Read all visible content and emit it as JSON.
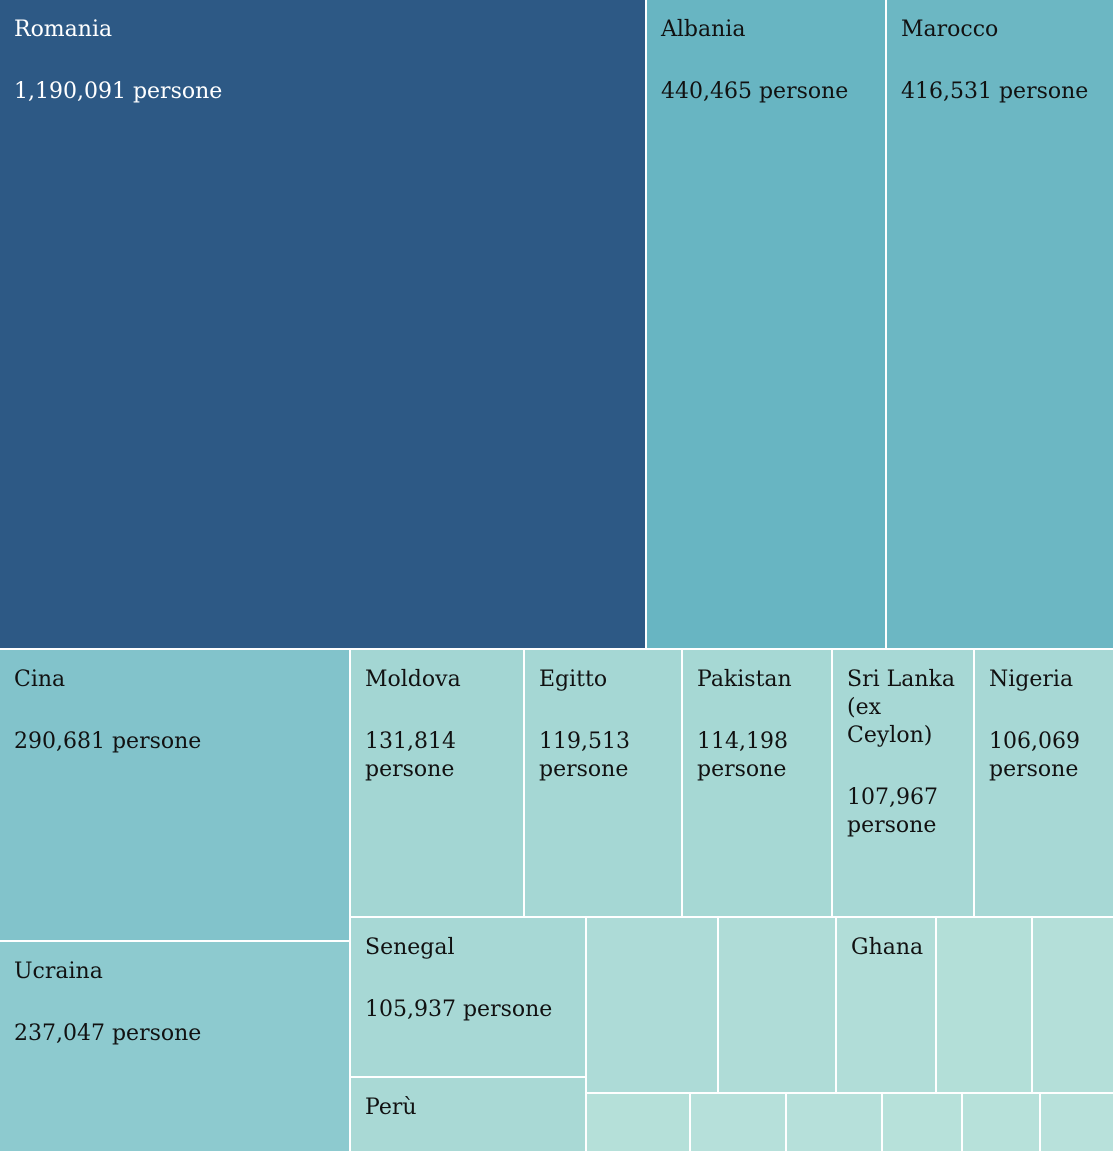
{
  "chart_data": {
    "type": "treemap",
    "value_suffix": "persone",
    "items": [
      {
        "name": "Romania",
        "value": 1190091,
        "value_label": "1,190,091 persone",
        "color": "#2d5985",
        "text_color": "#ffffff"
      },
      {
        "name": "Albania",
        "value": 440465,
        "value_label": "440,465 persone",
        "color": "#68b5c2",
        "text_color": "#111111"
      },
      {
        "name": "Marocco",
        "value": 416531,
        "value_label": "416,531 persone",
        "color": "#6cb7c3",
        "text_color": "#111111"
      },
      {
        "name": "Cina",
        "value": 290681,
        "value_label": "290,681 persone",
        "color": "#82c3cb",
        "text_color": "#111111"
      },
      {
        "name": "Ucraina",
        "value": 237047,
        "value_label": "237,047 persone",
        "color": "#8dcacf",
        "text_color": "#111111"
      },
      {
        "name": "Moldova",
        "value": 131814,
        "value_label": "131,814 persone",
        "color": "#a3d6d3",
        "text_color": "#111111"
      },
      {
        "name": "Egitto",
        "value": 119513,
        "value_label": "119,513 persone",
        "color": "#a5d7d4",
        "text_color": "#111111"
      },
      {
        "name": "Pakistan",
        "value": 114198,
        "value_label": "114,198 persone",
        "color": "#a6d8d4",
        "text_color": "#111111"
      },
      {
        "name": "Sri Lanka (ex Ceylon)",
        "value": 107967,
        "value_label": "107,967 persone",
        "color": "#a7d8d5",
        "text_color": "#111111"
      },
      {
        "name": "Nigeria",
        "value": 106069,
        "value_label": "106,069 persone",
        "color": "#a7d8d5",
        "text_color": "#111111"
      },
      {
        "name": "Senegal",
        "value": 105937,
        "value_label": "105,937 persone",
        "color": "#a7d8d5",
        "text_color": "#111111"
      },
      {
        "name": "Perù",
        "value": 99000,
        "value_label": "",
        "color": "#a9d9d5",
        "text_color": "#111111"
      },
      {
        "name": "",
        "value": 93000,
        "value_label": "",
        "color": "#addbd7",
        "text_color": "#111111"
      },
      {
        "name": "",
        "value": 84000,
        "value_label": "",
        "color": "#afdcd7",
        "text_color": "#111111"
      },
      {
        "name": "Ghana",
        "value": 71000,
        "value_label": "",
        "color": "#b1ddd8",
        "text_color": "#111111"
      },
      {
        "name": "",
        "value": 68000,
        "value_label": "",
        "color": "#b3dfd8",
        "text_color": "#111111"
      },
      {
        "name": "",
        "value": 60000,
        "value_label": "",
        "color": "#b4dfd9",
        "text_color": "#111111"
      },
      {
        "name": "",
        "value": 33000,
        "value_label": "",
        "color": "#b5e0d9",
        "text_color": "#111111"
      },
      {
        "name": "",
        "value": 31000,
        "value_label": "",
        "color": "#b6e0da",
        "text_color": "#111111"
      },
      {
        "name": "",
        "value": 31000,
        "value_label": "",
        "color": "#b6e0da",
        "text_color": "#111111"
      },
      {
        "name": "",
        "value": 26000,
        "value_label": "",
        "color": "#b7e1da",
        "text_color": "#111111"
      },
      {
        "name": "",
        "value": 25000,
        "value_label": "",
        "color": "#b7e1da",
        "text_color": "#111111"
      },
      {
        "name": "",
        "value": 24000,
        "value_label": "",
        "color": "#b8e1db",
        "text_color": "#111111"
      }
    ]
  }
}
